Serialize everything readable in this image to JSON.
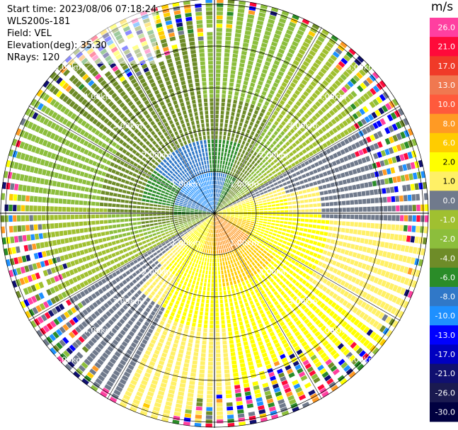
{
  "info": {
    "start_time": "Start time: 2023/08/06 07:18:24",
    "instrument": "WLS200s-181",
    "field": "Field: VEL",
    "elevation": "Elevation(deg): 35.30",
    "nrays": "NRays: 120"
  },
  "colorbar": {
    "unit": "m/s",
    "labels": [
      "26.0",
      "21.0",
      "17.0",
      "13.0",
      "10.0",
      "8.0",
      "6.0",
      "2.0",
      "1.0",
      "0.0",
      "-1.0",
      "-2.0",
      "-4.0",
      "-6.0",
      "-8.0",
      "-10.0",
      "-13.0",
      "-17.0",
      "-21.0",
      "-26.0",
      "-30.0"
    ],
    "colors": [
      "#ff3fa0",
      "#ff0a3a",
      "#f03a28",
      "#f07850",
      "#ff5a3c",
      "#ff9a24",
      "#ffcc00",
      "#ffff00",
      "#fff066",
      "#707a8c",
      "#a0c030",
      "#8cbe3c",
      "#6e8c28",
      "#2a8c28",
      "#3078c8",
      "#1e90ff",
      "#0000ff",
      "#0000c0",
      "#101070",
      "#1a1a50",
      "#000040"
    ]
  },
  "chart_data": {
    "type": "heatmap",
    "projection": "polar PPI",
    "field": "VEL",
    "units": "m/s",
    "nrays": 120,
    "elevation_deg": 35.3,
    "range_rings_km": [
      1.0,
      2.0,
      3.0,
      4.0,
      5.0
    ],
    "ring_labels": [
      "1.00km",
      "2.00km",
      "3.00km",
      "4.00km",
      "5.00km"
    ],
    "color_scale_min": -30.0,
    "color_scale_max": 26.0,
    "regions": [
      {
        "area": "center, north-west sector",
        "velocity_ms": -8.0
      },
      {
        "area": "near ring, north",
        "velocity_ms": -6.0
      },
      {
        "area": "middle ring, west/north-west",
        "velocity_ms": -4.0
      },
      {
        "area": "outer ring, north-west",
        "velocity_ms": -2.0
      },
      {
        "area": "center, south sector",
        "velocity_ms": 10.0
      },
      {
        "area": "near ring, south-east",
        "velocity_ms": 6.0
      },
      {
        "area": "middle ring, south/east",
        "velocity_ms": 2.0
      },
      {
        "area": "far ring, north-east / south-west",
        "velocity_ms": 0.0
      },
      {
        "area": "outermost rings",
        "velocity_ms": "noise"
      }
    ]
  }
}
